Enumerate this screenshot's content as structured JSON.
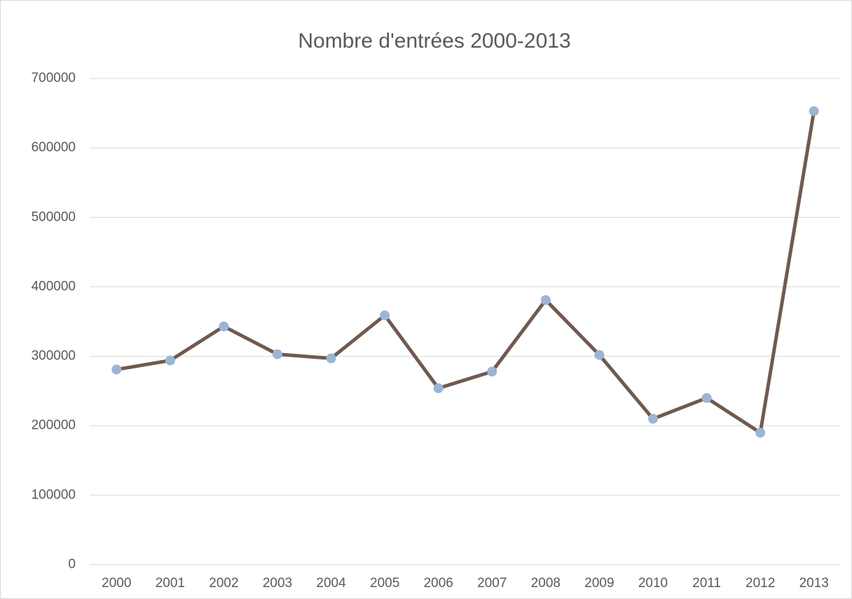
{
  "chart_data": {
    "type": "line",
    "title": "Nombre d'entrées 2000-2013",
    "categories": [
      "2000",
      "2001",
      "2002",
      "2003",
      "2004",
      "2005",
      "2006",
      "2007",
      "2008",
      "2009",
      "2010",
      "2011",
      "2012",
      "2013"
    ],
    "series": [
      {
        "name": "Nombre d'entrées",
        "color": "#705a50",
        "marker_color": "#9ab6d4",
        "values": [
          281000,
          294000,
          343000,
          303000,
          297000,
          359000,
          254000,
          278000,
          381000,
          302000,
          210000,
          240000,
          190000,
          653000
        ]
      }
    ],
    "ylim": [
      0,
      700000
    ],
    "yticks": [
      0,
      100000,
      200000,
      300000,
      400000,
      500000,
      600000,
      700000
    ],
    "grid": true
  }
}
